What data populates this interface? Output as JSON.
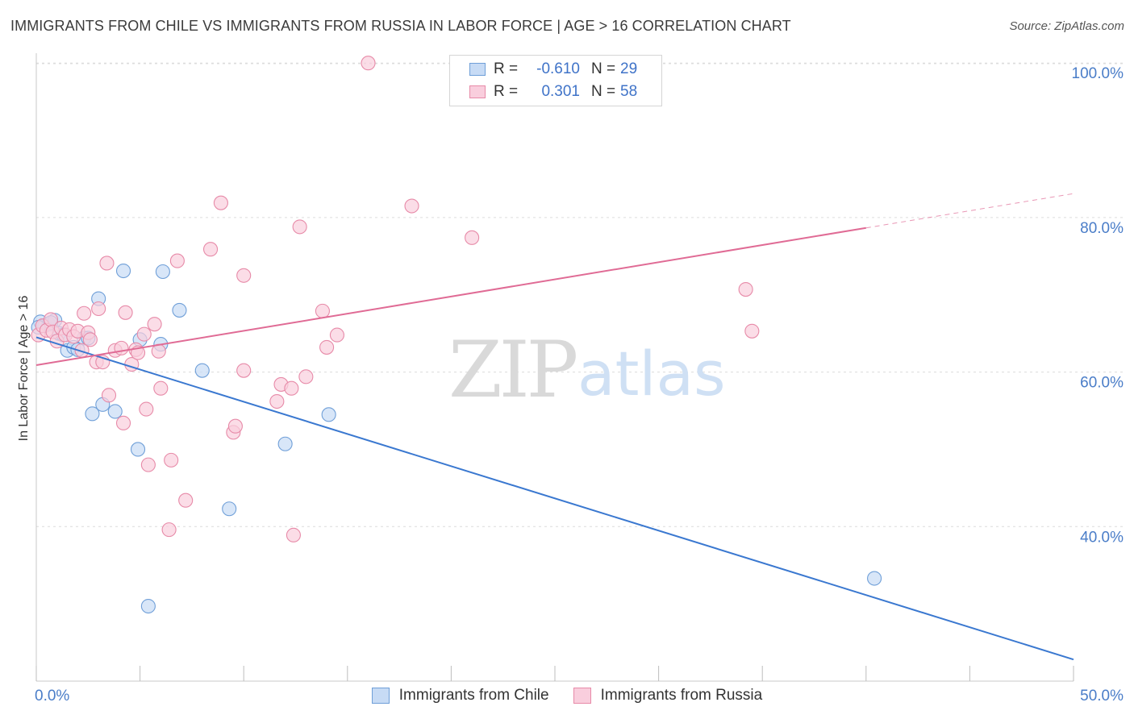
{
  "header": {
    "title": "IMMIGRANTS FROM CHILE VS IMMIGRANTS FROM RUSSIA IN LABOR FORCE | AGE > 16 CORRELATION CHART",
    "source": "Source: ZipAtlas.com"
  },
  "watermark": {
    "zip": "ZIP",
    "atlas": "atlas"
  },
  "legend": {
    "rows": [
      {
        "r_label": "R =",
        "r_value": "-0.610",
        "n_label": "N =",
        "n_value": "29"
      },
      {
        "r_label": "R =",
        "r_value": "0.301",
        "n_label": "N =",
        "n_value": "58"
      }
    ]
  },
  "colors": {
    "chile_fill": "#c7dbf5",
    "chile_stroke": "#6f9fd8",
    "chile_line": "#3a78d0",
    "russia_fill": "#f9cedd",
    "russia_stroke": "#e78aa8",
    "russia_line": "#e06b95",
    "tick": "#4a7dc8",
    "grid": "#dcdcdc"
  },
  "chart_data": {
    "type": "scatter",
    "title": "IMMIGRANTS FROM CHILE VS IMMIGRANTS FROM RUSSIA IN LABOR FORCE | AGE > 16 CORRELATION CHART",
    "xlabel": "",
    "ylabel": "In Labor Force | Age > 16",
    "xlim": [
      0,
      50
    ],
    "ylim": [
      20,
      102
    ],
    "x_tick_labels": [
      "0.0%",
      "50.0%"
    ],
    "y_ticks": [
      40,
      60,
      80,
      100
    ],
    "y_tick_labels": [
      "40.0%",
      "60.0%",
      "80.0%",
      "100.0%"
    ],
    "grid": true,
    "legend_position": "top-center",
    "series": [
      {
        "name": "Immigrants from Chile",
        "points": [
          [
            0.2,
            66.5
          ],
          [
            0.4,
            66.0
          ],
          [
            0.6,
            66.2
          ],
          [
            0.9,
            66.7
          ],
          [
            1.1,
            65.0
          ],
          [
            1.3,
            64.8
          ],
          [
            1.5,
            62.8
          ],
          [
            1.8,
            63.2
          ],
          [
            2.0,
            62.9
          ],
          [
            2.3,
            64.4
          ],
          [
            2.5,
            64.4
          ],
          [
            2.7,
            54.6
          ],
          [
            3.0,
            69.5
          ],
          [
            3.2,
            55.8
          ],
          [
            3.8,
            54.9
          ],
          [
            4.2,
            73.1
          ],
          [
            4.9,
            50.0
          ],
          [
            5.0,
            64.2
          ],
          [
            5.4,
            29.7
          ],
          [
            6.0,
            63.6
          ],
          [
            6.1,
            73.0
          ],
          [
            6.9,
            68.0
          ],
          [
            8.0,
            60.2
          ],
          [
            9.3,
            42.3
          ],
          [
            12.0,
            50.7
          ],
          [
            14.1,
            54.5
          ],
          [
            40.4,
            33.3
          ],
          [
            0.1,
            65.8
          ],
          [
            0.7,
            66.4
          ]
        ],
        "trend": {
          "x": [
            0,
            50
          ],
          "y": [
            64.5,
            22.8
          ]
        }
      },
      {
        "name": "Immigrants from Russia",
        "points": [
          [
            0.1,
            64.8
          ],
          [
            0.3,
            66.0
          ],
          [
            0.5,
            65.4
          ],
          [
            0.7,
            66.8
          ],
          [
            0.8,
            65.2
          ],
          [
            1.0,
            64.0
          ],
          [
            1.2,
            65.7
          ],
          [
            1.4,
            64.8
          ],
          [
            1.6,
            65.5
          ],
          [
            1.8,
            64.6
          ],
          [
            2.0,
            65.3
          ],
          [
            2.2,
            62.8
          ],
          [
            2.3,
            67.6
          ],
          [
            2.5,
            65.1
          ],
          [
            2.6,
            64.2
          ],
          [
            2.9,
            61.3
          ],
          [
            3.0,
            68.2
          ],
          [
            3.2,
            61.3
          ],
          [
            3.4,
            74.1
          ],
          [
            3.5,
            57.0
          ],
          [
            3.8,
            62.8
          ],
          [
            4.1,
            63.1
          ],
          [
            4.2,
            53.4
          ],
          [
            4.3,
            67.7
          ],
          [
            4.6,
            61.0
          ],
          [
            4.8,
            62.9
          ],
          [
            4.9,
            62.5
          ],
          [
            5.2,
            64.9
          ],
          [
            5.3,
            55.2
          ],
          [
            5.4,
            48.0
          ],
          [
            5.7,
            66.2
          ],
          [
            5.9,
            62.7
          ],
          [
            6.0,
            57.9
          ],
          [
            6.4,
            39.6
          ],
          [
            6.5,
            48.6
          ],
          [
            6.8,
            74.4
          ],
          [
            7.2,
            43.4
          ],
          [
            8.4,
            75.9
          ],
          [
            8.9,
            81.9
          ],
          [
            9.5,
            52.2
          ],
          [
            9.6,
            53.0
          ],
          [
            10.0,
            72.5
          ],
          [
            10.0,
            60.2
          ],
          [
            11.6,
            56.2
          ],
          [
            11.8,
            58.4
          ],
          [
            12.3,
            57.9
          ],
          [
            12.4,
            38.9
          ],
          [
            12.7,
            78.8
          ],
          [
            13.0,
            59.4
          ],
          [
            13.8,
            67.9
          ],
          [
            14.0,
            63.2
          ],
          [
            14.5,
            64.8
          ],
          [
            16.0,
            100.0
          ],
          [
            18.1,
            81.5
          ],
          [
            21.0,
            77.4
          ],
          [
            26.5,
            100.0
          ],
          [
            34.2,
            70.7
          ],
          [
            34.5,
            65.3
          ]
        ],
        "trend": {
          "x": [
            0,
            50
          ],
          "y": [
            60.9,
            83.1
          ]
        },
        "trend_solid_until_x": 40.0
      }
    ]
  }
}
